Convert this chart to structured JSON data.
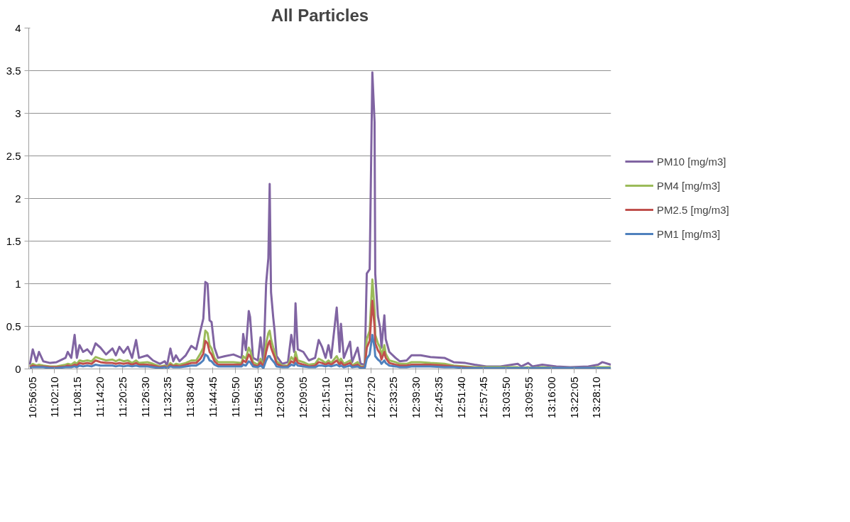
{
  "chart_data": {
    "type": "line",
    "title": "All Particles",
    "x": [
      10.925,
      10.938,
      10.954,
      10.966,
      10.985,
      11.016,
      11.045,
      11.085,
      11.095,
      11.111,
      11.126,
      11.136,
      11.148,
      11.164,
      11.183,
      11.202,
      11.22,
      11.242,
      11.267,
      11.296,
      11.311,
      11.327,
      11.346,
      11.365,
      11.384,
      11.402,
      11.415,
      11.453,
      11.478,
      11.509,
      11.531,
      11.541,
      11.556,
      11.569,
      11.581,
      11.597,
      11.625,
      11.65,
      11.672,
      11.691,
      11.704,
      11.713,
      11.723,
      11.732,
      11.741,
      11.754,
      11.77,
      11.801,
      11.839,
      11.876,
      11.883,
      11.895,
      11.908,
      11.914,
      11.927,
      11.949,
      11.961,
      11.974,
      11.986,
      11.996,
      12.002,
      12.008,
      12.018,
      12.024,
      12.033,
      12.058,
      12.084,
      12.099,
      12.112,
      12.118,
      12.128,
      12.153,
      12.178,
      12.206,
      12.222,
      12.237,
      12.253,
      12.266,
      12.278,
      12.303,
      12.316,
      12.322,
      12.335,
      12.363,
      12.372,
      12.397,
      12.41,
      12.429,
      12.438,
      12.451,
      12.463,
      12.473,
      12.476,
      12.488,
      12.498,
      12.504,
      12.517,
      12.523,
      12.539,
      12.567,
      12.586,
      12.617,
      12.639,
      12.68,
      12.724,
      12.787,
      12.828,
      12.881,
      12.922,
      12.975,
      13.038,
      13.116,
      13.132,
      13.163,
      13.182,
      13.226,
      13.289,
      13.352,
      13.433,
      13.477,
      13.496,
      13.534
    ],
    "series": [
      {
        "name": "PM10 [mg/m3]",
        "color": "#8064a2",
        "values": [
          0.05,
          0.23,
          0.09,
          0.2,
          0.09,
          0.07,
          0.08,
          0.13,
          0.2,
          0.13,
          0.4,
          0.13,
          0.28,
          0.2,
          0.23,
          0.17,
          0.3,
          0.25,
          0.17,
          0.24,
          0.16,
          0.26,
          0.19,
          0.26,
          0.13,
          0.34,
          0.13,
          0.16,
          0.1,
          0.06,
          0.09,
          0.04,
          0.24,
          0.09,
          0.16,
          0.09,
          0.16,
          0.27,
          0.23,
          0.45,
          0.59,
          1.02,
          1.0,
          0.57,
          0.55,
          0.25,
          0.13,
          0.15,
          0.17,
          0.13,
          0.41,
          0.22,
          0.68,
          0.61,
          0.13,
          0.1,
          0.37,
          0.06,
          1.0,
          1.3,
          2.17,
          0.9,
          0.6,
          0.45,
          0.15,
          0.06,
          0.08,
          0.4,
          0.2,
          0.77,
          0.23,
          0.2,
          0.1,
          0.13,
          0.34,
          0.26,
          0.13,
          0.28,
          0.13,
          0.72,
          0.2,
          0.53,
          0.13,
          0.32,
          0.08,
          0.25,
          0.06,
          0.05,
          1.12,
          1.17,
          3.48,
          2.9,
          1.12,
          0.62,
          0.48,
          0.25,
          0.63,
          0.35,
          0.2,
          0.13,
          0.09,
          0.1,
          0.16,
          0.16,
          0.14,
          0.13,
          0.08,
          0.07,
          0.05,
          0.03,
          0.03,
          0.06,
          0.03,
          0.07,
          0.03,
          0.05,
          0.03,
          0.02,
          0.03,
          0.05,
          0.08,
          0.05
        ]
      },
      {
        "name": "PM4 [mg/m3]",
        "color": "#9bbb59",
        "values": [
          0.03,
          0.06,
          0.04,
          0.05,
          0.04,
          0.03,
          0.03,
          0.05,
          0.06,
          0.05,
          0.08,
          0.06,
          0.1,
          0.09,
          0.1,
          0.09,
          0.14,
          0.12,
          0.1,
          0.11,
          0.09,
          0.11,
          0.09,
          0.1,
          0.07,
          0.1,
          0.07,
          0.08,
          0.06,
          0.03,
          0.04,
          0.02,
          0.07,
          0.04,
          0.06,
          0.05,
          0.07,
          0.1,
          0.1,
          0.18,
          0.25,
          0.45,
          0.42,
          0.28,
          0.24,
          0.13,
          0.08,
          0.08,
          0.08,
          0.07,
          0.15,
          0.12,
          0.25,
          0.22,
          0.08,
          0.05,
          0.12,
          0.03,
          0.3,
          0.42,
          0.45,
          0.35,
          0.25,
          0.2,
          0.09,
          0.04,
          0.04,
          0.14,
          0.1,
          0.2,
          0.1,
          0.08,
          0.05,
          0.06,
          0.12,
          0.1,
          0.07,
          0.1,
          0.07,
          0.15,
          0.08,
          0.12,
          0.06,
          0.1,
          0.04,
          0.08,
          0.03,
          0.03,
          0.35,
          0.45,
          1.05,
          0.7,
          0.4,
          0.3,
          0.25,
          0.15,
          0.28,
          0.18,
          0.1,
          0.08,
          0.06,
          0.06,
          0.08,
          0.08,
          0.07,
          0.06,
          0.04,
          0.03,
          0.02,
          0.02,
          0.02,
          0.02,
          0.01,
          0.02,
          0.01,
          0.02,
          0.01,
          0.01,
          0.01,
          0.02,
          0.02,
          0.02
        ]
      },
      {
        "name": "PM2.5 [mg/m3]",
        "color": "#c0504d",
        "values": [
          0.02,
          0.04,
          0.03,
          0.03,
          0.03,
          0.02,
          0.02,
          0.03,
          0.04,
          0.03,
          0.05,
          0.04,
          0.07,
          0.06,
          0.07,
          0.06,
          0.1,
          0.08,
          0.07,
          0.07,
          0.06,
          0.07,
          0.06,
          0.07,
          0.05,
          0.07,
          0.05,
          0.05,
          0.04,
          0.02,
          0.03,
          0.01,
          0.05,
          0.03,
          0.04,
          0.03,
          0.05,
          0.07,
          0.07,
          0.12,
          0.18,
          0.33,
          0.3,
          0.2,
          0.17,
          0.09,
          0.05,
          0.05,
          0.05,
          0.05,
          0.1,
          0.08,
          0.17,
          0.15,
          0.05,
          0.03,
          0.08,
          0.02,
          0.2,
          0.3,
          0.33,
          0.25,
          0.18,
          0.14,
          0.06,
          0.03,
          0.03,
          0.09,
          0.07,
          0.13,
          0.07,
          0.05,
          0.03,
          0.04,
          0.08,
          0.07,
          0.05,
          0.07,
          0.05,
          0.1,
          0.05,
          0.08,
          0.04,
          0.07,
          0.03,
          0.05,
          0.02,
          0.02,
          0.25,
          0.33,
          0.8,
          0.5,
          0.3,
          0.22,
          0.18,
          0.11,
          0.2,
          0.13,
          0.07,
          0.05,
          0.04,
          0.04,
          0.05,
          0.05,
          0.05,
          0.04,
          0.03,
          0.02,
          0.01,
          0.01,
          null,
          null,
          null,
          null,
          null,
          null,
          null,
          null,
          null,
          null,
          null,
          null
        ]
      },
      {
        "name": "PM1 [mg/m3]",
        "color": "#4f81bd",
        "values": [
          0.01,
          0.02,
          0.02,
          0.02,
          0.02,
          0.01,
          0.01,
          0.02,
          0.02,
          0.02,
          0.03,
          0.02,
          0.04,
          0.03,
          0.04,
          0.03,
          0.05,
          0.04,
          0.04,
          0.04,
          0.03,
          0.04,
          0.03,
          0.04,
          0.03,
          0.04,
          0.03,
          0.03,
          0.02,
          0.01,
          0.02,
          0.01,
          0.03,
          0.02,
          0.02,
          0.02,
          0.03,
          0.04,
          0.04,
          0.07,
          0.1,
          0.17,
          0.15,
          0.1,
          0.09,
          0.05,
          0.03,
          0.03,
          0.03,
          0.03,
          0.05,
          0.04,
          0.09,
          0.08,
          0.03,
          0.02,
          0.04,
          0.01,
          0.1,
          0.15,
          0.15,
          0.12,
          0.09,
          0.07,
          0.03,
          0.02,
          0.02,
          0.05,
          0.04,
          0.07,
          0.04,
          0.03,
          0.02,
          0.02,
          0.04,
          0.04,
          0.03,
          0.04,
          0.03,
          0.05,
          0.03,
          0.04,
          0.02,
          0.04,
          0.02,
          0.03,
          0.01,
          0.01,
          0.12,
          0.17,
          0.4,
          0.25,
          0.15,
          0.11,
          0.09,
          0.06,
          0.1,
          0.07,
          0.04,
          0.03,
          0.02,
          0.02,
          0.03,
          0.03,
          0.03,
          0.02,
          0.02,
          0.01,
          0.01,
          0.01,
          0.01,
          0.01,
          0.01,
          0.01,
          0.01,
          0.01,
          0.01,
          0.01,
          0.01,
          0.01,
          0.01,
          0.01
        ]
      }
    ],
    "xlim": [
      10.92,
      13.535
    ],
    "xticks": [
      {
        "value": 10.9347,
        "label": "10:56:05"
      },
      {
        "value": 11.0361,
        "label": "11:02:10"
      },
      {
        "value": 11.1375,
        "label": "11:08:15"
      },
      {
        "value": 11.2389,
        "label": "11:14:20"
      },
      {
        "value": 11.3403,
        "label": "11:20:25"
      },
      {
        "value": 11.4417,
        "label": "11:26:30"
      },
      {
        "value": 11.5431,
        "label": "11:32:35"
      },
      {
        "value": 11.6444,
        "label": "11:38:40"
      },
      {
        "value": 11.7458,
        "label": "11:44:45"
      },
      {
        "value": 11.8472,
        "label": "11:50:50"
      },
      {
        "value": 11.9486,
        "label": "11:56:55"
      },
      {
        "value": 12.05,
        "label": "12:03:00"
      },
      {
        "value": 12.1514,
        "label": "12:09:05"
      },
      {
        "value": 12.2528,
        "label": "12:15:10"
      },
      {
        "value": 12.3542,
        "label": "12:21:15"
      },
      {
        "value": 12.4556,
        "label": "12:27:20"
      },
      {
        "value": 12.5569,
        "label": "12:33:25"
      },
      {
        "value": 12.6583,
        "label": "12:39:30"
      },
      {
        "value": 12.7597,
        "label": "12:45:35"
      },
      {
        "value": 12.8611,
        "label": "12:51:40"
      },
      {
        "value": 12.9625,
        "label": "12:57:45"
      },
      {
        "value": 13.0639,
        "label": "13:03:50"
      },
      {
        "value": 13.1653,
        "label": "13:09:55"
      },
      {
        "value": 13.2667,
        "label": "13:16:00"
      },
      {
        "value": 13.3681,
        "label": "13:22:05"
      },
      {
        "value": 13.4694,
        "label": "13:28:10"
      }
    ],
    "ylim": [
      0,
      4
    ],
    "yticks": [
      0,
      0.5,
      1,
      1.5,
      2,
      2.5,
      3,
      3.5,
      4
    ],
    "grid": "y",
    "legend": "right",
    "marker": "none",
    "line_style": "solid"
  }
}
